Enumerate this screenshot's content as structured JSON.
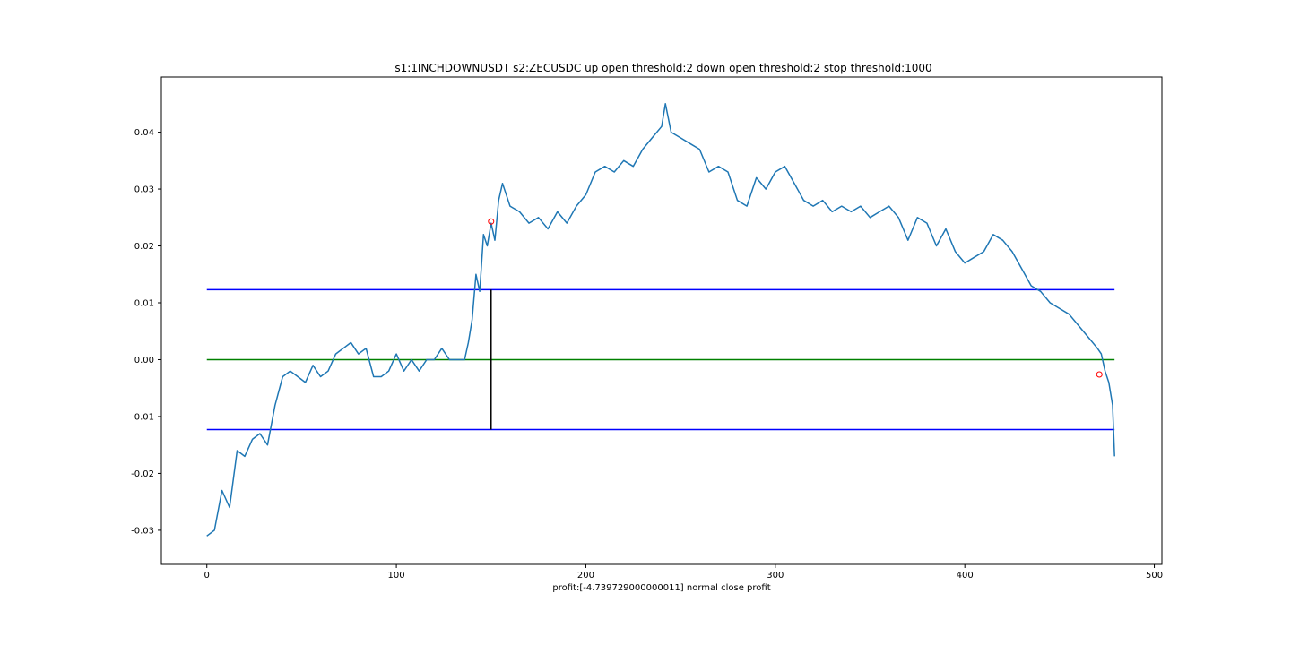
{
  "chart_data": {
    "type": "line",
    "title": "s1:1INCHDOWNUSDT s2:ZECUSDC up open threshold:2 down open threshold:2 stop threshold:1000",
    "xlabel": "profit:[-4.739729000000011] normal close profit",
    "ylabel": "",
    "xlim": [
      -24,
      504
    ],
    "ylim": [
      -0.036,
      0.0497
    ],
    "xticks": [
      0,
      100,
      200,
      300,
      400,
      500
    ],
    "yticks": [
      -0.03,
      -0.02,
      -0.01,
      0.0,
      0.01,
      0.02,
      0.03,
      0.04
    ],
    "ytick_labels": [
      "-0.03",
      "-0.02",
      "-0.01",
      "0.00",
      "0.01",
      "0.02",
      "0.03",
      "0.04"
    ],
    "grid": false,
    "series": [
      {
        "name": "",
        "color": "#1f77b4",
        "x": [
          0,
          4,
          8,
          12,
          16,
          20,
          24,
          28,
          32,
          36,
          40,
          44,
          48,
          52,
          56,
          60,
          64,
          68,
          72,
          76,
          80,
          84,
          88,
          92,
          96,
          100,
          104,
          108,
          112,
          116,
          120,
          124,
          128,
          132,
          136,
          138,
          140,
          142,
          144,
          146,
          148,
          150,
          152,
          154,
          156,
          160,
          165,
          170,
          175,
          180,
          185,
          190,
          195,
          200,
          205,
          210,
          215,
          220,
          225,
          230,
          235,
          240,
          242,
          245,
          250,
          255,
          260,
          265,
          270,
          275,
          280,
          285,
          290,
          295,
          300,
          305,
          310,
          315,
          320,
          325,
          330,
          335,
          340,
          345,
          350,
          355,
          360,
          365,
          370,
          375,
          380,
          385,
          390,
          395,
          400,
          405,
          410,
          415,
          420,
          425,
          430,
          435,
          440,
          445,
          450,
          455,
          460,
          465,
          470,
          472,
          474,
          476,
          478,
          479
        ],
        "values": [
          -0.031,
          -0.03,
          -0.023,
          -0.026,
          -0.016,
          -0.017,
          -0.014,
          -0.013,
          -0.015,
          -0.008,
          -0.003,
          -0.002,
          -0.003,
          -0.004,
          -0.001,
          -0.003,
          -0.002,
          0.001,
          0.002,
          0.003,
          0.001,
          0.002,
          -0.003,
          -0.003,
          -0.002,
          0.001,
          -0.002,
          0.0,
          -0.002,
          0.0,
          0.0,
          0.002,
          0.0,
          0.0,
          0.0,
          0.003,
          0.007,
          0.015,
          0.012,
          0.022,
          0.02,
          0.024,
          0.021,
          0.028,
          0.031,
          0.027,
          0.026,
          0.024,
          0.025,
          0.023,
          0.026,
          0.024,
          0.027,
          0.029,
          0.033,
          0.034,
          0.033,
          0.035,
          0.034,
          0.037,
          0.039,
          0.041,
          0.045,
          0.04,
          0.039,
          0.038,
          0.037,
          0.033,
          0.034,
          0.033,
          0.028,
          0.027,
          0.032,
          0.03,
          0.033,
          0.034,
          0.031,
          0.028,
          0.027,
          0.028,
          0.026,
          0.027,
          0.026,
          0.027,
          0.025,
          0.026,
          0.027,
          0.025,
          0.021,
          0.025,
          0.024,
          0.02,
          0.023,
          0.019,
          0.017,
          0.018,
          0.019,
          0.022,
          0.021,
          0.019,
          0.016,
          0.013,
          0.012,
          0.01,
          0.009,
          0.008,
          0.006,
          0.004,
          0.002,
          0.001,
          -0.002,
          -0.004,
          -0.008,
          -0.017
        ]
      }
    ],
    "hlines": [
      {
        "y": 0.0123,
        "xmin": 0,
        "xmax": 479,
        "color": "#0000ff"
      },
      {
        "y": -0.0123,
        "xmin": 0,
        "xmax": 479,
        "color": "#0000ff"
      },
      {
        "y": 0.0,
        "xmin": 0,
        "xmax": 479,
        "color": "#008000"
      }
    ],
    "vlines": [
      {
        "x": 150,
        "ymin": -0.0123,
        "ymax": 0.0123,
        "color": "#000000"
      }
    ],
    "markers": [
      {
        "x": 150,
        "y": 0.0243,
        "color": "#ff0000"
      },
      {
        "x": 471,
        "y": -0.0026,
        "color": "#ff0000"
      }
    ]
  }
}
